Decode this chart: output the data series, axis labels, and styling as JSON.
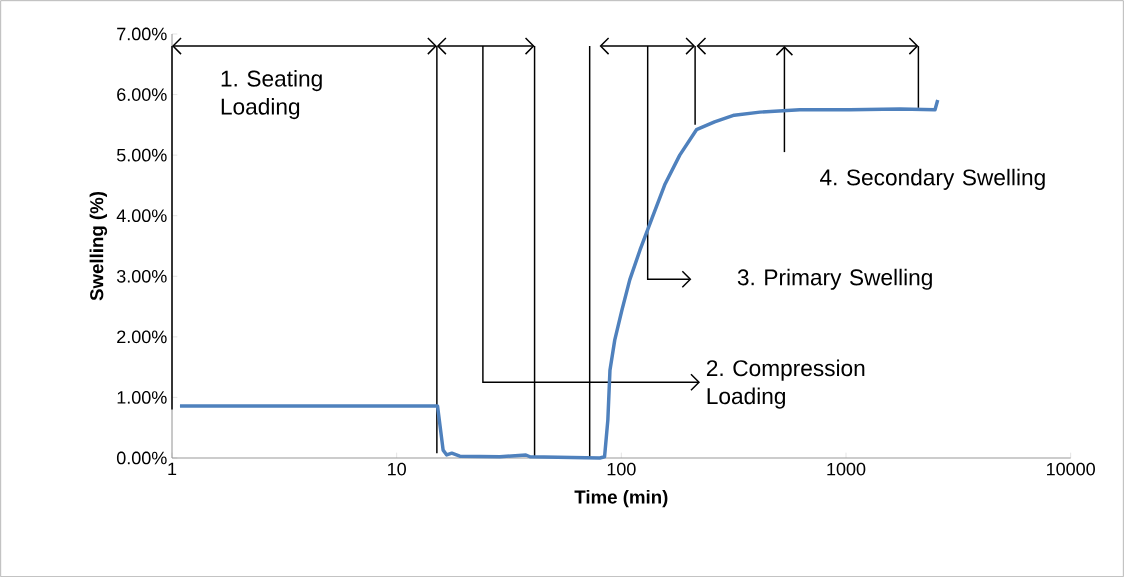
{
  "chart_data": {
    "type": "line",
    "xlabel": "Time (min)",
    "ylabel": "Swelling (%)",
    "log": "x",
    "marker": "none",
    "line_style": "solid",
    "xlim": [
      1,
      10000
    ],
    "xticks": [
      1,
      10,
      100,
      1000,
      10000
    ],
    "ylim": [
      0,
      7
    ],
    "yticks": [
      {
        "value": 0,
        "label": "0.00%"
      },
      {
        "value": 1,
        "label": "1.00%"
      },
      {
        "value": 2,
        "label": "2.00%"
      },
      {
        "value": 3,
        "label": "3.00%"
      },
      {
        "value": 4,
        "label": "4.00%"
      },
      {
        "value": 5,
        "label": "5.00%"
      },
      {
        "value": 6,
        "label": "6.00%"
      },
      {
        "value": 7,
        "label": "7.00%"
      }
    ],
    "series": [
      {
        "color": "#4f81bd",
        "x": [
          1.085,
          14.8,
          15.2,
          16.1,
          16.7,
          17.6,
          19.1,
          28.8,
          37.6,
          39.2,
          80.2,
          84.2,
          87.1,
          89.0,
          93.5,
          100.6,
          109,
          121,
          137,
          156,
          182,
          216,
          260,
          318,
          414,
          623,
          1040,
          1740,
          2490,
          2560
        ],
        "values": [
          0.86,
          0.86,
          0.86,
          0.13,
          0.05,
          0.08,
          0.03,
          0.02,
          0.05,
          0.02,
          0.0,
          0.02,
          0.63,
          1.45,
          1.95,
          2.44,
          2.94,
          3.43,
          3.96,
          4.51,
          5.0,
          5.42,
          5.55,
          5.66,
          5.71,
          5.75,
          5.75,
          5.76,
          5.75,
          5.91
        ]
      }
    ],
    "annotations": [
      "1. Seating Loading",
      "2. Compression Loading",
      "3. Primary Swelling",
      "4. Secondary Swelling"
    ]
  }
}
